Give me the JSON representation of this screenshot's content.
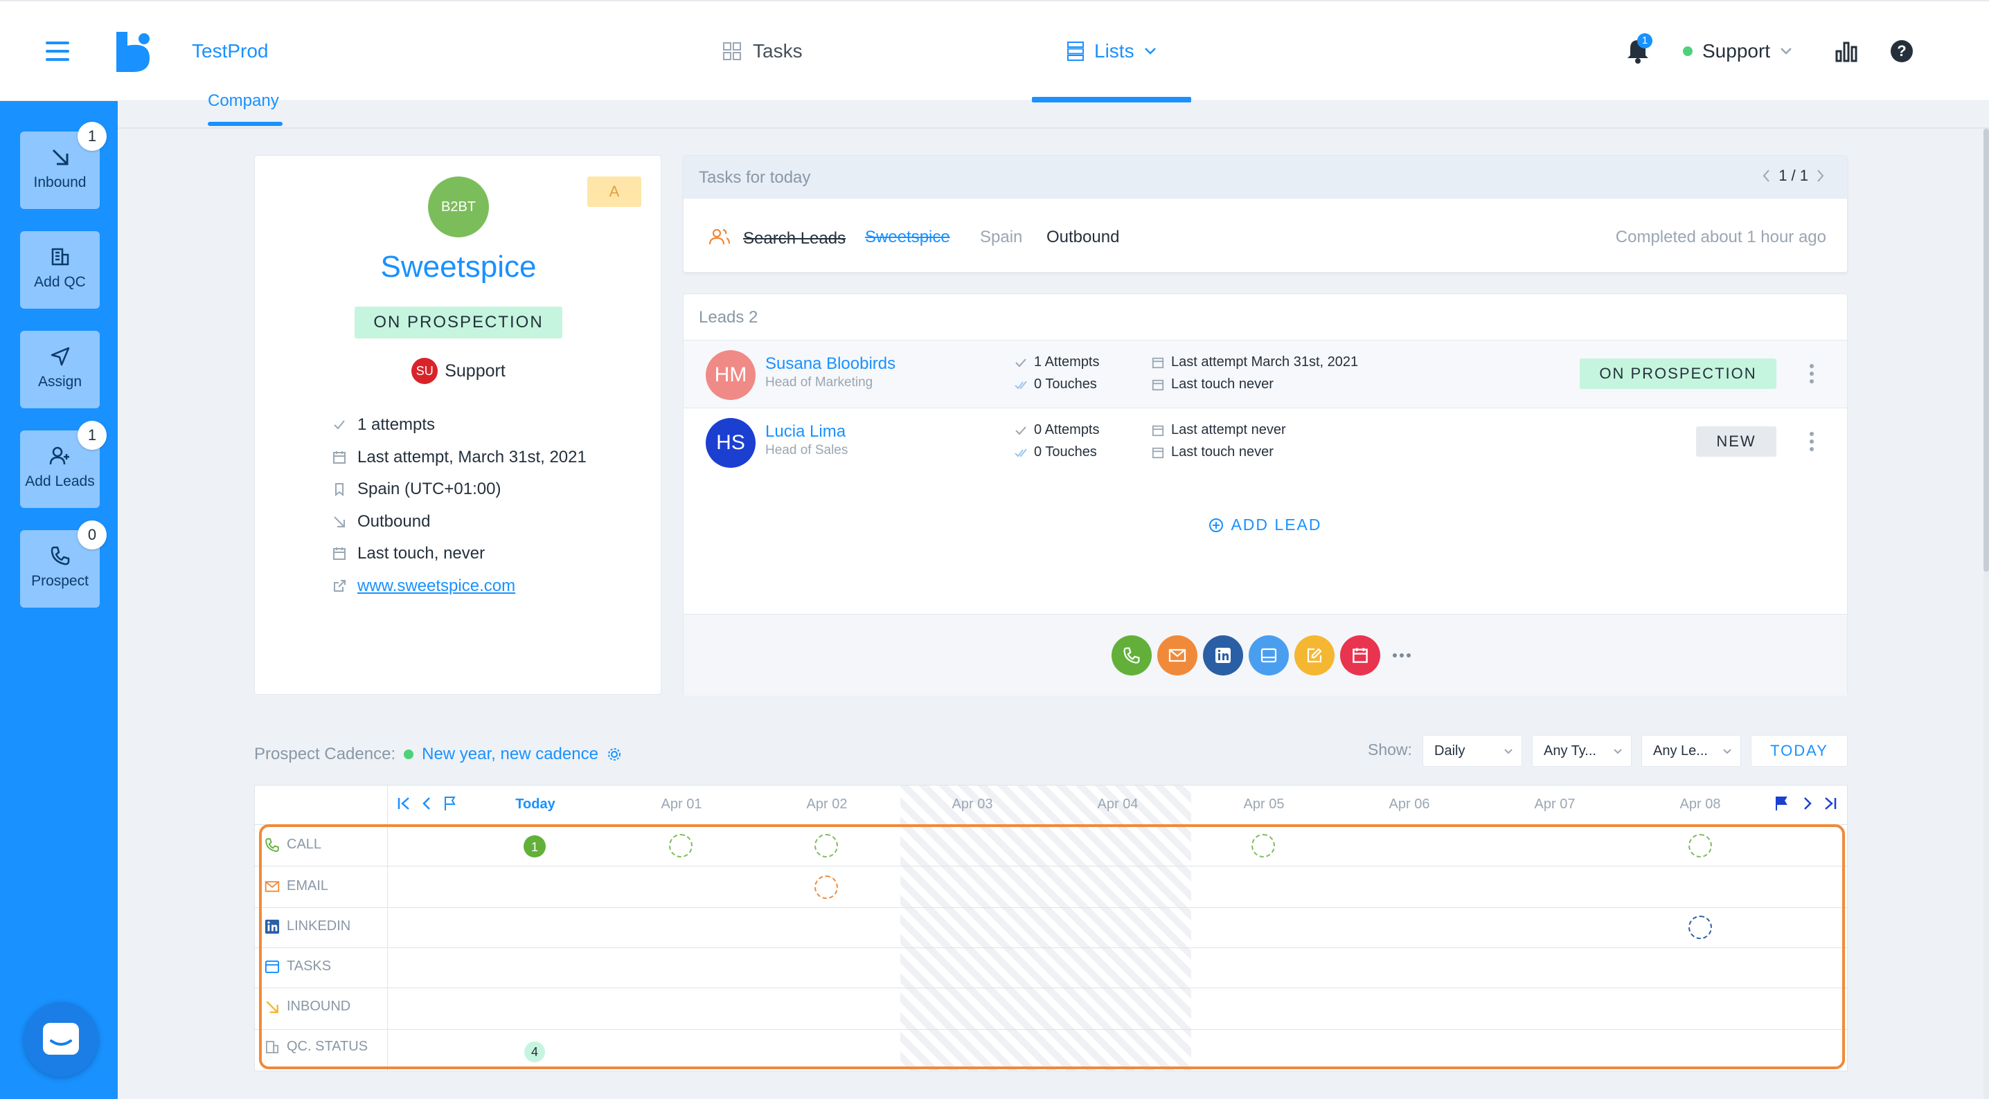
{
  "header": {
    "app_name": "TestProd",
    "nav_tasks": "Tasks",
    "nav_lists": "Lists",
    "notifications_count": "1",
    "user_name": "Support"
  },
  "sidebar": {
    "items": [
      {
        "label": "Inbound",
        "badge": "1",
        "icon": "arrow-down-right-icon"
      },
      {
        "label": "Add QC",
        "badge": "",
        "icon": "building-icon"
      },
      {
        "label": "Assign",
        "badge": "",
        "icon": "send-icon"
      },
      {
        "label": "Add Leads",
        "badge": "1",
        "icon": "add-user-icon"
      },
      {
        "label": "Prospect",
        "badge": "0",
        "icon": "phone-icon"
      }
    ]
  },
  "company_tab": "Company",
  "company": {
    "avatar": "B2BT",
    "score": "A",
    "name": "Sweetspice",
    "status": "ON PROSPECTION",
    "owner_initials": "SU",
    "owner": "Support",
    "attempts": "1 attempts",
    "last_attempt": "Last attempt, March 31st, 2021",
    "timezone": "Spain (UTC+01:00)",
    "source": "Outbound",
    "last_touch": "Last touch, never",
    "website": "www.sweetspice.com"
  },
  "tasks_today": {
    "title": "Tasks for today",
    "pagination": "1 / 1",
    "task": {
      "name": "Search Leads",
      "company": "Sweetspice",
      "country": "Spain",
      "source": "Outbound",
      "completed": "Completed about 1 hour ago"
    }
  },
  "leads": {
    "title": "Leads 2",
    "rows": [
      {
        "initials": "HM",
        "name": "Susana Bloobirds",
        "role": "Head of Marketing",
        "attempts": "1 Attempts",
        "touches": "0 Touches",
        "last_attempt": "Last attempt March 31st, 2021",
        "last_touch": "Last touch never",
        "status": "ON PROSPECTION",
        "avatar_color": "#f08a86"
      },
      {
        "initials": "HS",
        "name": "Lucia Lima",
        "role": "Head of Sales",
        "attempts": "0 Attempts",
        "touches": "0 Touches",
        "last_attempt": "Last attempt never",
        "last_touch": "Last touch never",
        "status": "NEW",
        "avatar_color": "#1a3fd1"
      }
    ],
    "add_lead": "ADD LEAD"
  },
  "cadence": {
    "label": "Prospect Cadence:",
    "name": "New year, new cadence",
    "show_label": "Show:",
    "filters": [
      "Daily",
      "Any Ty...",
      "Any Le..."
    ],
    "today_button": "TODAY",
    "days": [
      "Today",
      "Apr 01",
      "Apr 02",
      "Apr 03",
      "Apr 04",
      "Apr 05",
      "Apr 06",
      "Apr 07",
      "Apr 08"
    ],
    "rows": [
      "CALL",
      "EMAIL",
      "LINKEDIN",
      "TASKS",
      "INBOUND",
      "QC. STATUS"
    ],
    "call_count": "1",
    "status_count": "4"
  }
}
